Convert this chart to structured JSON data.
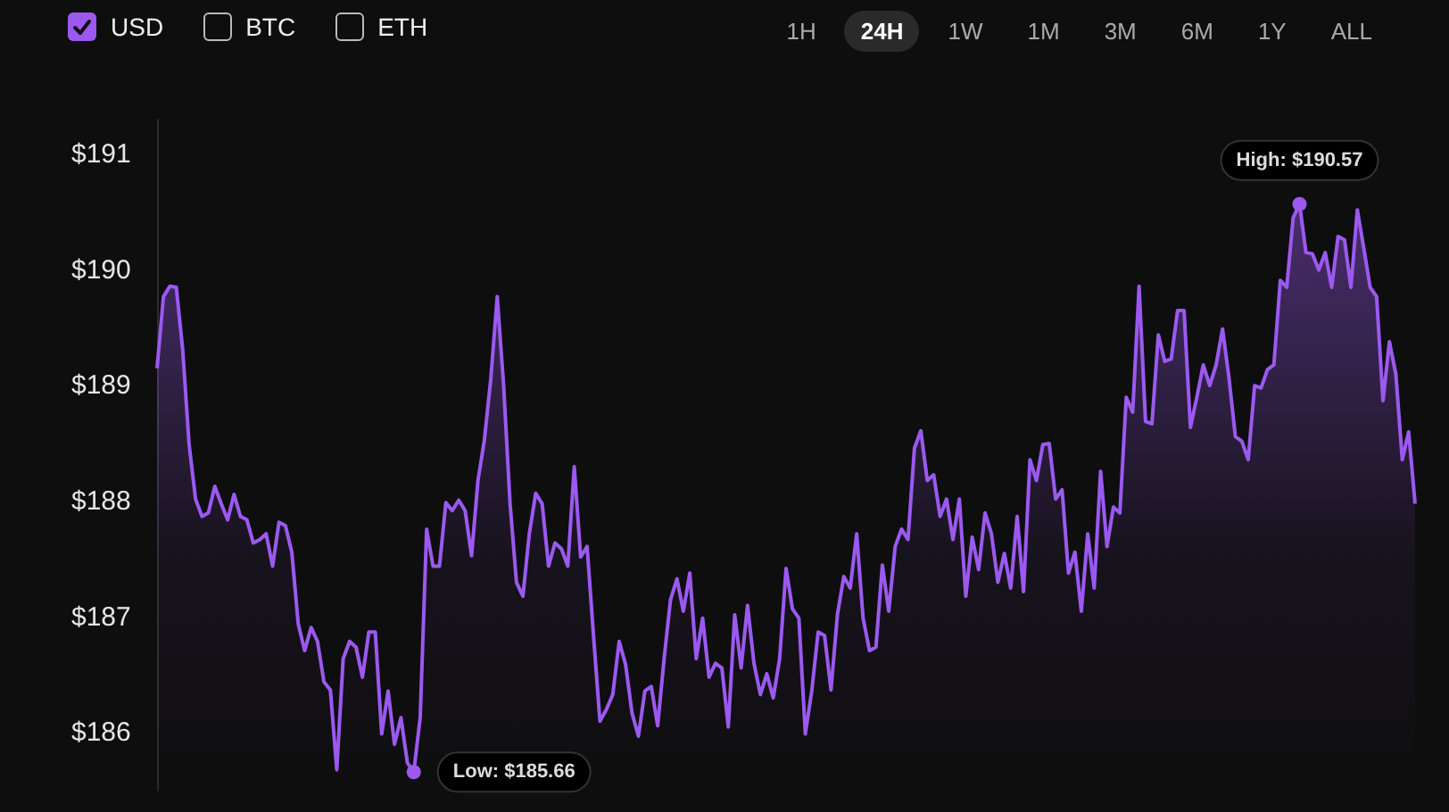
{
  "chart_data": {
    "type": "area",
    "categories": [
      null,
      null,
      null,
      null,
      null,
      null,
      null,
      null,
      null,
      null,
      null,
      null,
      null,
      null,
      null,
      null,
      null,
      null,
      null,
      null,
      null,
      null,
      null,
      null,
      null,
      null,
      null,
      null,
      null,
      null,
      null,
      null,
      null,
      null,
      null,
      null,
      null,
      null,
      null,
      null,
      null,
      null,
      null,
      null,
      null,
      null,
      null,
      null,
      null,
      null,
      null,
      null,
      null,
      null,
      null,
      null,
      null,
      null,
      null,
      null,
      null,
      null,
      null,
      null,
      null,
      null,
      null,
      null,
      null,
      null,
      null,
      null,
      null,
      null,
      null,
      null,
      null,
      null,
      null,
      null,
      null,
      null,
      null,
      null,
      null,
      null,
      null,
      null,
      null,
      null,
      null,
      null,
      null,
      null,
      null,
      null,
      null,
      null,
      null,
      null,
      null,
      null,
      null,
      null,
      null,
      null,
      null,
      null,
      null,
      null,
      null,
      null,
      null,
      null,
      null,
      null,
      null,
      null,
      null,
      null,
      null,
      null,
      null,
      null,
      null,
      null,
      null,
      null,
      null,
      null,
      null,
      null,
      null,
      null,
      null,
      null,
      null,
      null,
      null,
      null,
      null,
      null,
      null,
      null,
      null,
      null,
      null,
      null,
      null,
      null,
      null,
      null,
      null,
      null,
      null,
      null,
      null,
      null,
      null,
      null,
      null,
      null,
      null,
      null,
      null,
      null,
      null,
      null,
      null,
      null,
      null,
      null,
      null,
      null,
      null,
      null,
      null,
      null,
      null,
      null,
      null,
      null,
      null,
      null,
      null,
      null,
      null,
      null,
      null,
      null,
      null,
      null,
      null,
      null,
      null,
      null,
      null
    ],
    "series": [
      {
        "name": "USD",
        "color": "#9b59f0",
        "values": [
          189.15,
          189.77,
          189.86,
          189.85,
          189.31,
          188.49,
          188.02,
          187.87,
          187.9,
          188.13,
          187.98,
          187.84,
          188.06,
          187.87,
          187.84,
          187.64,
          187.67,
          187.72,
          187.44,
          187.82,
          187.79,
          187.56,
          186.94,
          186.71,
          186.91,
          186.79,
          186.44,
          186.37,
          185.68,
          186.64,
          186.79,
          186.74,
          186.48,
          186.87,
          186.87,
          185.99,
          186.36,
          185.9,
          186.13,
          185.74,
          185.66,
          186.13,
          187.76,
          187.44,
          187.44,
          187.99,
          187.92,
          188.01,
          187.92,
          187.53,
          188.18,
          188.53,
          189.06,
          189.77,
          189.0,
          187.98,
          187.3,
          187.18,
          187.72,
          188.07,
          187.98,
          187.44,
          187.64,
          187.59,
          187.44,
          188.3,
          187.52,
          187.61,
          186.84,
          186.1,
          186.2,
          186.33,
          186.79,
          186.59,
          186.17,
          185.97,
          186.36,
          186.4,
          186.06,
          186.64,
          187.15,
          187.33,
          187.05,
          187.38,
          186.64,
          186.99,
          186.48,
          186.6,
          186.56,
          186.05,
          187.02,
          186.56,
          187.1,
          186.6,
          186.33,
          186.51,
          186.3,
          186.64,
          187.42,
          187.07,
          186.99,
          185.99,
          186.36,
          186.87,
          186.84,
          186.37,
          187.02,
          187.35,
          187.25,
          187.72,
          186.99,
          186.71,
          186.74,
          187.45,
          187.05,
          187.61,
          187.76,
          187.67,
          188.46,
          188.61,
          188.18,
          188.23,
          187.87,
          188.02,
          187.67,
          188.02,
          187.18,
          187.69,
          187.41,
          187.9,
          187.72,
          187.3,
          187.55,
          187.25,
          187.87,
          187.22,
          188.36,
          188.18,
          188.49,
          188.5,
          188.02,
          188.1,
          187.38,
          187.56,
          187.05,
          187.72,
          187.25,
          188.26,
          187.61,
          187.95,
          187.9,
          188.9,
          188.77,
          189.86,
          188.69,
          188.67,
          189.44,
          189.21,
          189.23,
          189.65,
          189.65,
          188.64,
          188.9,
          189.18,
          189.0,
          189.18,
          189.49,
          189.07,
          188.56,
          188.52,
          188.36,
          189.0,
          188.98,
          189.14,
          189.18,
          189.91,
          189.85,
          190.45,
          190.57,
          190.15,
          190.14,
          190.0,
          190.15,
          189.85,
          190.29,
          190.26,
          189.85,
          190.52,
          190.19,
          189.85,
          189.77,
          188.87,
          189.38,
          189.1,
          188.36,
          188.6,
          187.98
        ]
      }
    ],
    "yticks": [
      {
        "value": 186,
        "label": "$186"
      },
      {
        "value": 187,
        "label": "$187"
      },
      {
        "value": 188,
        "label": "$188"
      },
      {
        "value": 189,
        "label": "$189"
      },
      {
        "value": 190,
        "label": "$190"
      },
      {
        "value": 191,
        "label": "$191"
      }
    ],
    "ylim": [
      185.5,
      191.3
    ],
    "grid": false,
    "legend": "top left",
    "marker": "none",
    "line_style": "solid",
    "annotations": [
      "BTC",
      "ETH",
      "1H",
      "24H",
      "1W",
      "1M",
      "3M",
      "6M",
      "1Y",
      "ALL",
      "Low: $185.66",
      {
        "text": "High: $190.57",
        "y": 190.57
      }
    ]
  }
}
